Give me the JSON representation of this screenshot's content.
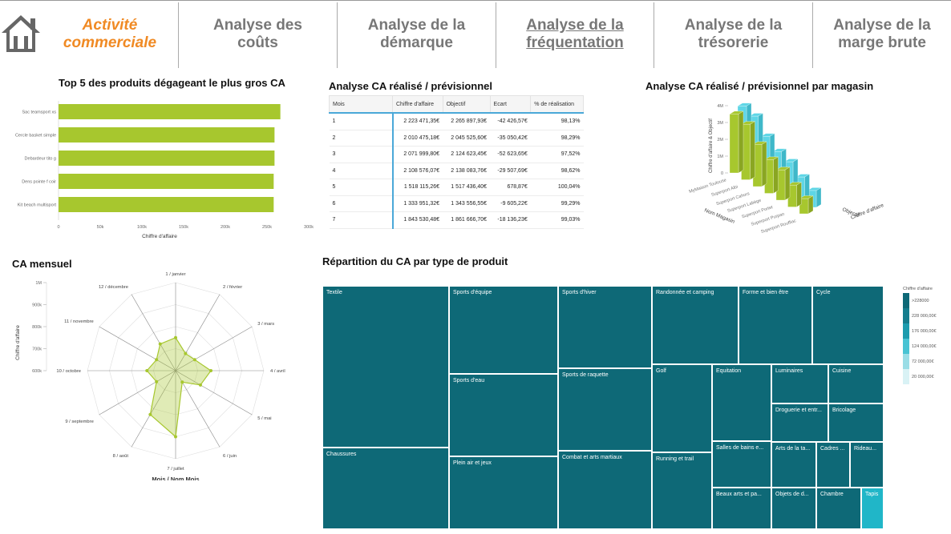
{
  "nav": {
    "tabs": [
      {
        "label_line1": "Activité",
        "label_line2": "commerciale"
      },
      {
        "label_line1": "Analyse des",
        "label_line2": "coûts"
      },
      {
        "label_line1": "Analyse de la",
        "label_line2": "démarque"
      },
      {
        "label_line1": "Analyse de la",
        "label_line2": "fréquentation"
      },
      {
        "label_line1": "Analyse de la",
        "label_line2": "trésorerie"
      },
      {
        "label_line1": "Analyse de la",
        "label_line2": "marge brute"
      }
    ],
    "active_color": "#f08a24"
  },
  "top5": {
    "title": "Top 5 des produits dégageant le plus gros CA",
    "chart_data": {
      "type": "bar",
      "orientation": "horizontal",
      "categories": [
        "Sac teamsport xs",
        "Cercle basket simple",
        "Debardeur tito g",
        "Dens pointe f coir",
        "Kit beach multisport"
      ],
      "values": [
        266000,
        259000,
        259000,
        258000,
        258000
      ],
      "xlabel": "Chiffre d'affaire",
      "xticks": [
        "0",
        "50k",
        "100k",
        "150k",
        "200k",
        "250k",
        "300k"
      ],
      "xlim": [
        0,
        300000
      ],
      "color": "#a7c72e"
    }
  },
  "table": {
    "title": "Analyse CA réalisé / prévisionnel",
    "headers": [
      "Mois",
      "Chiffre d'affaire",
      "Objectif",
      "Ecart",
      "% de réalisation"
    ],
    "rows": [
      [
        "1",
        "2 223 471,35€",
        "2 265 897,93€",
        "-42 426,57€",
        "98,13%"
      ],
      [
        "2",
        "2 010 475,18€",
        "2 045 525,60€",
        "-35 050,42€",
        "98,29%"
      ],
      [
        "3",
        "2 071 999,80€",
        "2 124 623,45€",
        "-52 623,65€",
        "97,52%"
      ],
      [
        "4",
        "2 108 576,07€",
        "2 138 083,76€",
        "-29 507,69€",
        "98,62%"
      ],
      [
        "5",
        "1 518 115,26€",
        "1 517 436,40€",
        "678,87€",
        "100,04%"
      ],
      [
        "6",
        "1 333 951,32€",
        "1 343 556,55€",
        "-9 605,22€",
        "99,29%"
      ],
      [
        "7",
        "1 843 530,48€",
        "1 861 666,70€",
        "-18 136,23€",
        "99,03%"
      ]
    ]
  },
  "bar3d": {
    "title": "Analyse CA réalisé / prévisionnel par magasin",
    "chart_data": {
      "type": "bar",
      "categories": [
        "MyMaison Toulouse",
        "Superport Albi",
        "Superport Cahors",
        "Superport Labège",
        "Superport Portet",
        "Superport Purpan",
        "Superport Rouffiac"
      ],
      "series": [
        {
          "name": "Chiffre d'affaire",
          "values": [
            3.5,
            3.3,
            2.5,
            2.0,
            1.8,
            1.3,
            0.9
          ]
        },
        {
          "name": "Objectif",
          "values": [
            3.6,
            3.4,
            2.6,
            2.1,
            1.9,
            1.4,
            1.0
          ]
        }
      ],
      "ylabel": "Chiffre d'affaire & Objectif",
      "xlabel": "Nom Magasin",
      "zlabels": [
        "Objectif",
        "Chiffre d'affaire"
      ],
      "yticks": [
        "0",
        "1M",
        "2M",
        "3M",
        "4M"
      ],
      "ylim": [
        0,
        4
      ],
      "colors": [
        "#a7c72e",
        "#5ed6e6"
      ]
    }
  },
  "radar": {
    "title": "CA mensuel",
    "chart_data": {
      "type": "radar",
      "categories": [
        "1 / janvier",
        "2 / février",
        "3 / mars",
        "4 / avril",
        "5 / mai",
        "6 / juin",
        "7 / juillet",
        "8 / août",
        "9 / septembre",
        "10 / octobre",
        "11 / novembre",
        "12 / décembre"
      ],
      "values": [
        750000,
        690000,
        700000,
        760000,
        730000,
        660000,
        900000,
        830000,
        700000,
        730000,
        700000,
        740000
      ],
      "yticks": [
        "600k",
        "700k",
        "800k",
        "900k",
        "1M"
      ],
      "ylim": [
        600000,
        1000000
      ],
      "ylabel": "Chiffre d'affaire",
      "xlabel": "Mois / Nom Mois",
      "color": "#a7c72e"
    }
  },
  "treemap": {
    "title": "Répartition du CA par type de produit",
    "cells": [
      {
        "label": "Textile"
      },
      {
        "label": "Chaussures"
      },
      {
        "label": "Sports d'équipe"
      },
      {
        "label": "Sports d'eau"
      },
      {
        "label": "Plein air et jeux"
      },
      {
        "label": "Sports d'hiver"
      },
      {
        "label": "Sports de raquette"
      },
      {
        "label": "Combat et arts martiaux"
      },
      {
        "label": "Randonnée et camping"
      },
      {
        "label": "Forme et bien être"
      },
      {
        "label": "Cycle"
      },
      {
        "label": "Golf"
      },
      {
        "label": "Running et trail"
      },
      {
        "label": "Equitation"
      },
      {
        "label": "Salles de bains e..."
      },
      {
        "label": "Beaux arts et pa..."
      },
      {
        "label": "Luminaires"
      },
      {
        "label": "Cuisine"
      },
      {
        "label": "Droguerie et entr..."
      },
      {
        "label": "Bricolage"
      },
      {
        "label": "Arts de la ta..."
      },
      {
        "label": "Cadres ..."
      },
      {
        "label": "Rideau..."
      },
      {
        "label": "Objets de d..."
      },
      {
        "label": "Chambre"
      },
      {
        "label": "Tapis"
      }
    ],
    "legend": {
      "title": "Chiffre d'affaire",
      "items": [
        ">228000",
        "228 000,00€",
        "176 000,00€",
        "124 000,00€",
        "72 000,00€",
        "20 000,00€"
      ],
      "colors": [
        "#0e6977",
        "#157d8d",
        "#1d9cae",
        "#48c3d3",
        "#9adde6",
        "#d9f2f5"
      ]
    }
  }
}
